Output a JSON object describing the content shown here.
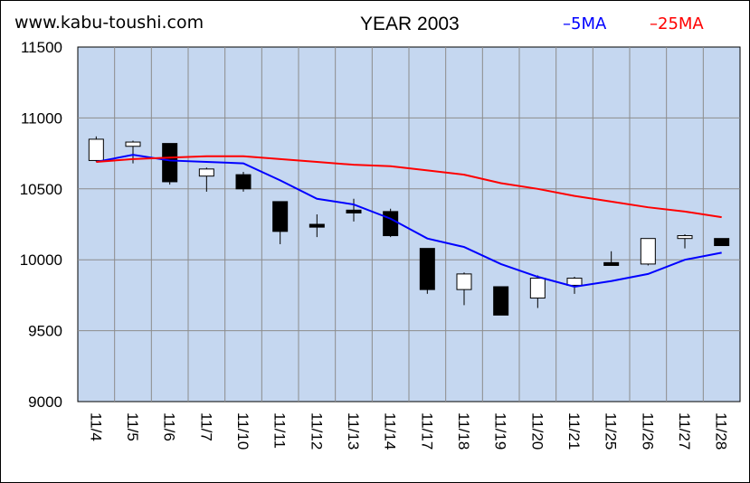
{
  "header": {
    "site": "www.kabu-toushi.com",
    "title": "YEAR 2003"
  },
  "chart_data": {
    "type": "candlestick",
    "categories": [
      "11/4",
      "11/5",
      "11/6",
      "11/7",
      "11/10",
      "11/11",
      "11/12",
      "11/13",
      "11/14",
      "11/17",
      "11/18",
      "11/19",
      "11/20",
      "11/21",
      "11/25",
      "11/26",
      "11/27",
      "11/28"
    ],
    "ylim": [
      9000,
      11500
    ],
    "yticks": [
      9000,
      9500,
      10000,
      10500,
      11000,
      11500
    ],
    "grid": true,
    "legend_position": "top-right",
    "candles": [
      {
        "open": 10700,
        "high": 10870,
        "low": 10690,
        "close": 10850
      },
      {
        "open": 10800,
        "high": 10840,
        "low": 10680,
        "close": 10830
      },
      {
        "open": 10820,
        "high": 10820,
        "low": 10530,
        "close": 10550
      },
      {
        "open": 10590,
        "high": 10650,
        "low": 10480,
        "close": 10640
      },
      {
        "open": 10600,
        "high": 10620,
        "low": 10480,
        "close": 10500
      },
      {
        "open": 10410,
        "high": 10410,
        "low": 10110,
        "close": 10200
      },
      {
        "open": 10250,
        "high": 10320,
        "low": 10160,
        "close": 10230
      },
      {
        "open": 10350,
        "high": 10430,
        "low": 10270,
        "close": 10330
      },
      {
        "open": 10340,
        "high": 10360,
        "low": 10160,
        "close": 10170
      },
      {
        "open": 10080,
        "high": 10080,
        "low": 9760,
        "close": 9790
      },
      {
        "open": 9790,
        "high": 9910,
        "low": 9680,
        "close": 9900
      },
      {
        "open": 9810,
        "high": 9810,
        "low": 9610,
        "close": 9610
      },
      {
        "open": 9730,
        "high": 9890,
        "low": 9660,
        "close": 9870
      },
      {
        "open": 9820,
        "high": 9880,
        "low": 9760,
        "close": 9870
      },
      {
        "open": 9980,
        "high": 10060,
        "low": 9960,
        "close": 9960
      },
      {
        "open": 9970,
        "high": 10150,
        "low": 9960,
        "close": 10150
      },
      {
        "open": 10150,
        "high": 10180,
        "low": 10080,
        "close": 10170
      },
      {
        "open": 10150,
        "high": 10150,
        "low": 10100,
        "close": 10100
      }
    ],
    "series": [
      {
        "name": "5MA",
        "color": "#0000ff",
        "values": [
          10690,
          10740,
          10700,
          10690,
          10680,
          10560,
          10430,
          10390,
          10290,
          10150,
          10090,
          9970,
          9880,
          9810,
          9850,
          9900,
          10000,
          10050
        ]
      },
      {
        "name": "25MA",
        "color": "#ff0000",
        "values": [
          10690,
          10710,
          10720,
          10730,
          10730,
          10710,
          10690,
          10670,
          10660,
          10630,
          10600,
          10540,
          10500,
          10450,
          10410,
          10370,
          10340,
          10300
        ]
      }
    ]
  },
  "colors": {
    "plot_background": "#c5d7f0",
    "grid": "#8c8c8c",
    "bull_body": "#ffffff",
    "bear_body": "#000000"
  }
}
